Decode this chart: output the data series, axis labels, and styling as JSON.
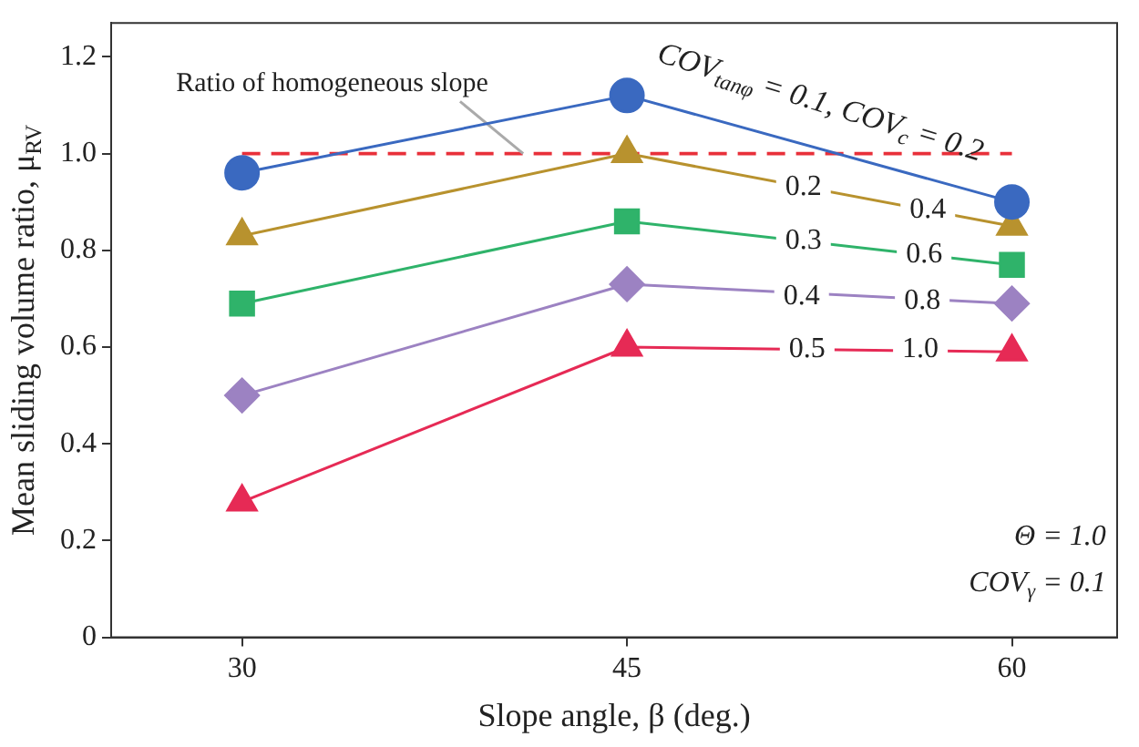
{
  "chart_data": {
    "type": "line",
    "xlabel": "Slope angle, β (deg.)",
    "ylabel": "Mean sliding volume ratio, μ$_{RV}$",
    "x": [
      30,
      45,
      60
    ],
    "xlim": [
      24.9,
      64.1
    ],
    "xticks": [
      30,
      45,
      60
    ],
    "ylim": [
      0,
      1.27
    ],
    "yticks": [
      0,
      0.2,
      0.4,
      0.6,
      0.8,
      {
        "value": 1,
        "label": "1.0"
      },
      1.2
    ],
    "grid": false,
    "legend": false,
    "series": [
      {
        "color": "#3a69c0",
        "marker": "circle",
        "values": [
          0.96,
          1.12,
          0.9
        ]
      },
      {
        "color": "#b8922e",
        "marker": "triangle",
        "values": [
          0.83,
          1.0,
          0.85
        ]
      },
      {
        "color": "#2fb36a",
        "marker": "square",
        "values": [
          0.69,
          0.86,
          0.77
        ]
      },
      {
        "color": "#9c82c2",
        "marker": "diamond",
        "values": [
          0.5,
          0.73,
          0.69
        ]
      },
      {
        "color": "#e62a55",
        "marker": "triangle",
        "values": [
          0.28,
          0.6,
          0.59
        ]
      }
    ],
    "ref_lines": [
      {
        "axis": "y",
        "value": 1,
        "label": "Ratio of homogeneous slope",
        "color": "#e8303a",
        "line_style": "dashed"
      }
    ],
    "annotations": [
      "COV$_{tanφ}$ = 0.1, COV$_{c}$ = 0.2",
      "0.2",
      "0.4",
      "0.3",
      "0.6",
      "0.4",
      "0.8",
      "0.5",
      "1.0",
      "Θ = 1.0",
      "COV$_{γ}$ = 0.1"
    ]
  }
}
